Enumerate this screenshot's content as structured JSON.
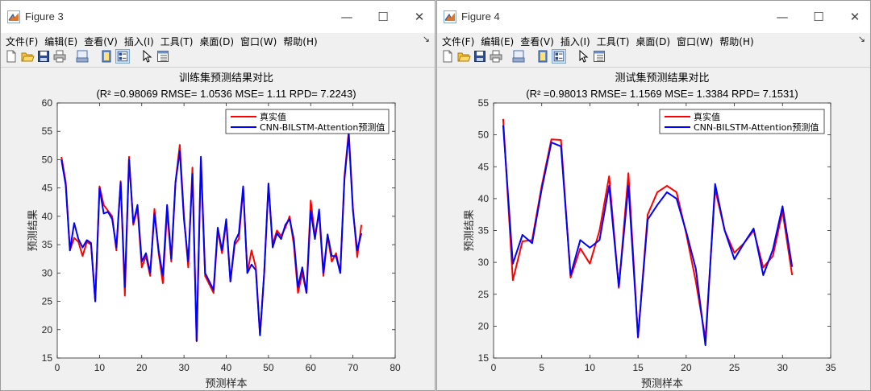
{
  "windows": [
    {
      "title": "Figure 3",
      "menu": [
        "文件(F)",
        "编辑(E)",
        "查看(V)",
        "插入(I)",
        "工具(T)",
        "桌面(D)",
        "窗口(W)",
        "帮助(H)"
      ],
      "toolbar_icons": [
        "new-figure-icon",
        "open-file-icon",
        "save-icon",
        "print-icon",
        "print-preview-icon",
        "hide-plot-tools-icon",
        "show-plot-tools-icon",
        "edit-plot-icon",
        "property-inspector-icon"
      ],
      "chart_data": {
        "type": "line",
        "title": "训练集预测结果对比",
        "subtitle": "(R² =0.98069 RMSE= 1.0536 MSE= 1.11 RPD= 7.2243)",
        "xlabel": "预测样本",
        "ylabel": "预测结果",
        "xlim": [
          0,
          80
        ],
        "ylim": [
          15,
          60
        ],
        "xticks": [
          0,
          10,
          20,
          30,
          40,
          50,
          60,
          70,
          80
        ],
        "yticks": [
          15,
          20,
          25,
          30,
          35,
          40,
          45,
          50,
          55,
          60
        ],
        "grid": false,
        "legend_position": "top-right",
        "x": [
          1,
          2,
          3,
          4,
          5,
          6,
          7,
          8,
          9,
          10,
          11,
          12,
          13,
          14,
          15,
          16,
          17,
          18,
          19,
          20,
          21,
          22,
          23,
          24,
          25,
          26,
          27,
          28,
          29,
          30,
          31,
          32,
          33,
          34,
          35,
          36,
          37,
          38,
          39,
          40,
          41,
          42,
          43,
          44,
          45,
          46,
          47,
          48,
          49,
          50,
          51,
          52,
          53,
          54,
          55,
          56,
          57,
          58,
          59,
          60,
          61,
          62,
          63,
          64,
          65,
          66,
          67,
          68,
          69,
          70,
          71,
          72
        ],
        "series": [
          {
            "name": "真实值",
            "color": "#ff0000",
            "values": [
              50.5,
              46.0,
              34.0,
              36.2,
              35.5,
              33.0,
              35.5,
              35.0,
              25.0,
              45.3,
              42.0,
              41.0,
              40.0,
              34.0,
              46.2,
              26.0,
              50.5,
              38.5,
              41.5,
              31.0,
              33.0,
              29.5,
              41.3,
              33.5,
              28.2,
              41.0,
              32.0,
              46.0,
              52.6,
              40.0,
              31.0,
              48.6,
              18.0,
              50.0,
              29.5,
              28.0,
              26.5,
              37.5,
              33.5,
              39.0,
              28.5,
              35.0,
              36.0,
              45.0,
              30.0,
              34.0,
              31.0,
              19.0,
              30.0,
              45.5,
              35.0,
              37.5,
              36.5,
              38.0,
              40.0,
              35.0,
              26.5,
              30.0,
              26.5,
              42.8,
              36.5,
              40.5,
              29.5,
              36.5,
              32.0,
              33.5,
              30.0,
              47.0,
              55.0,
              41.5,
              32.8,
              38.5
            ]
          },
          {
            "name": "CNN-BILSTM-Attention预测值",
            "color": "#0000ff",
            "values": [
              50.0,
              45.5,
              34.0,
              38.8,
              36.0,
              34.5,
              35.8,
              35.3,
              25.0,
              45.0,
              40.5,
              40.8,
              39.5,
              34.5,
              46.0,
              27.5,
              50.0,
              38.8,
              42.0,
              32.0,
              33.5,
              30.0,
              40.5,
              34.0,
              29.5,
              42.0,
              32.5,
              46.0,
              51.5,
              39.5,
              32.0,
              47.5,
              18.0,
              50.5,
              30.0,
              28.5,
              27.0,
              38.0,
              34.0,
              39.5,
              28.5,
              35.5,
              37.0,
              45.3,
              30.0,
              31.5,
              30.5,
              19.0,
              30.0,
              45.8,
              34.5,
              37.0,
              36.0,
              38.5,
              39.5,
              36.0,
              27.5,
              31.0,
              26.5,
              41.0,
              36.0,
              41.2,
              30.0,
              36.8,
              33.0,
              33.0,
              30.0,
              46.5,
              54.5,
              41.0,
              34.0,
              37.0
            ]
          }
        ]
      }
    },
    {
      "title": "Figure 4",
      "menu": [
        "文件(F)",
        "编辑(E)",
        "查看(V)",
        "插入(I)",
        "工具(T)",
        "桌面(D)",
        "窗口(W)",
        "帮助(H)"
      ],
      "toolbar_icons": [
        "new-figure-icon",
        "open-file-icon",
        "save-icon",
        "print-icon",
        "print-preview-icon",
        "hide-plot-tools-icon",
        "show-plot-tools-icon",
        "edit-plot-icon",
        "property-inspector-icon"
      ],
      "chart_data": {
        "type": "line",
        "title": "测试集预测结果对比",
        "subtitle": "(R² =0.98013 RMSE= 1.1569 MSE= 1.3384 RPD= 7.1531)",
        "xlabel": "预测样本",
        "ylabel": "预测结果",
        "xlim": [
          0,
          35
        ],
        "ylim": [
          15,
          55
        ],
        "xticks": [
          0,
          5,
          10,
          15,
          20,
          25,
          30,
          35
        ],
        "yticks": [
          15,
          20,
          25,
          30,
          35,
          40,
          45,
          50,
          55
        ],
        "grid": false,
        "legend_position": "top-right",
        "x": [
          1,
          2,
          3,
          4,
          5,
          6,
          7,
          8,
          9,
          10,
          11,
          12,
          13,
          14,
          15,
          16,
          17,
          18,
          19,
          20,
          21,
          22,
          23,
          24,
          25,
          26,
          27,
          28,
          29,
          30,
          31
        ],
        "series": [
          {
            "name": "真实值",
            "color": "#ff0000",
            "values": [
              52.5,
              27.2,
              33.3,
              33.5,
              42.0,
              49.3,
              49.2,
              27.6,
              32.2,
              29.8,
              35.0,
              43.5,
              26.0,
              44.0,
              18.2,
              37.5,
              41.0,
              42.0,
              41.0,
              34.5,
              27.0,
              18.0,
              41.5,
              35.0,
              31.5,
              33.0,
              35.0,
              29.2,
              31.0,
              38.0,
              28.0
            ]
          },
          {
            "name": "CNN-BILSTM-Attention预测值",
            "color": "#0000ff",
            "values": [
              51.5,
              29.8,
              34.3,
              33.0,
              41.5,
              48.8,
              48.2,
              28.0,
              33.5,
              32.3,
              33.5,
              42.0,
              26.2,
              42.0,
              18.3,
              36.7,
              39.0,
              41.0,
              40.0,
              34.8,
              29.0,
              17.0,
              42.3,
              35.0,
              30.5,
              33.0,
              35.3,
              28.0,
              32.0,
              38.8,
              29.3
            ]
          }
        ]
      }
    }
  ]
}
